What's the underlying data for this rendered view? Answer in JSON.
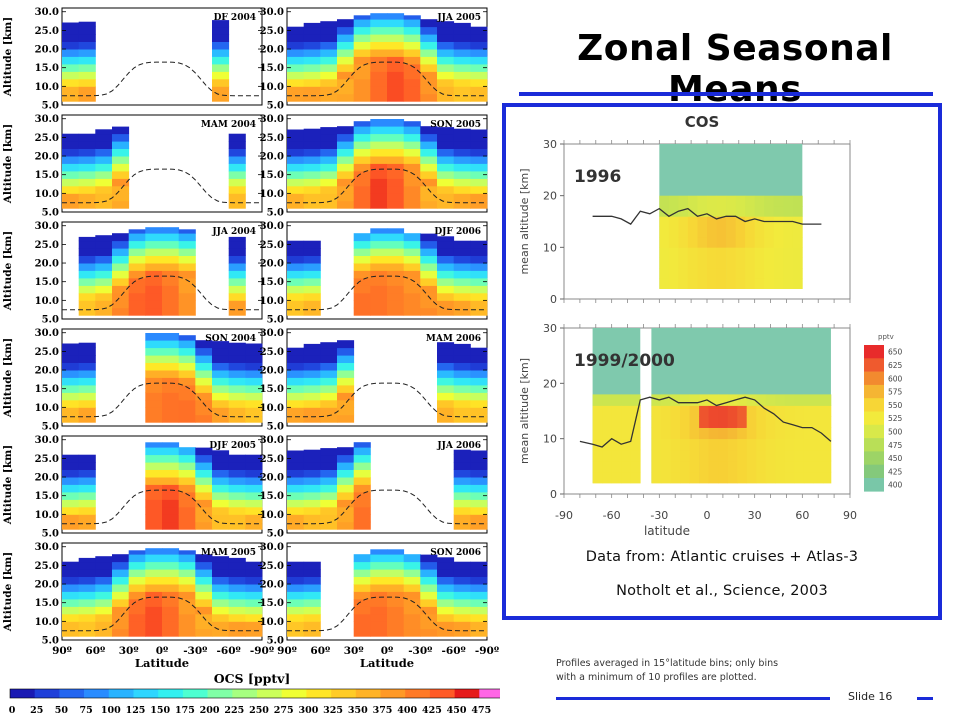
{
  "slide": {
    "title": "Zonal Seasonal Means",
    "caption_line1": "Data from: Atlantic cruises + Atlas-3",
    "caption_line2": "Notholt et al., Science, 2003",
    "note_line1": "Profiles averaged in 15°latitude bins; only bins",
    "note_line2": "with a minimum of 10 profiles are plotted.",
    "slide_number": "Slide 16"
  },
  "colors": {
    "accent": "#1a2bd9"
  },
  "chart_data": [
    {
      "type": "heatmap",
      "layout": "grid of 12 small multiples, 6 rows x 2 columns",
      "panels": [
        {
          "label": "DF 2004"
        },
        {
          "label": "JJA 2005"
        },
        {
          "label": "MAM 2004"
        },
        {
          "label": "SON 2005"
        },
        {
          "label": "JJA 2004"
        },
        {
          "label": "DJF 2006"
        },
        {
          "label": "SON 2004"
        },
        {
          "label": "MAM 2006"
        },
        {
          "label": "DJF 2005"
        },
        {
          "label": "JJA 2006"
        },
        {
          "label": "MAM 2005"
        },
        {
          "label": "SON 2006"
        }
      ],
      "xlabel": "Latitude",
      "ylabel": "Altitude [km]",
      "x_tick_labels": [
        "90º",
        "60º",
        "30º",
        "0º",
        "-30º",
        "-60º",
        "-90º"
      ],
      "xlim": [
        90,
        -90
      ],
      "y_tick_labels": [
        "30.0",
        "25.0",
        "20.0",
        "15.0",
        "10.0",
        "5.0"
      ],
      "ylim": [
        5,
        31
      ],
      "colorbar": {
        "title": "OCS [pptv]",
        "tick_labels": [
          "0",
          "25",
          "50",
          "75",
          "100",
          "125",
          "150",
          "175",
          "200",
          "225",
          "250",
          "275",
          "300",
          "325",
          "350",
          "375",
          "400",
          "425",
          "450",
          "475"
        ],
        "colors": [
          "#1a1ab3",
          "#1f3fd9",
          "#2466f0",
          "#2a8cff",
          "#29b3ff",
          "#2ed6ff",
          "#33f0f0",
          "#4dffd1",
          "#80ffa6",
          "#a6ff80",
          "#ccff59",
          "#f0ff33",
          "#ffe626",
          "#ffcc26",
          "#ffb326",
          "#ff9926",
          "#ff7a26",
          "#ff5a26",
          "#e61a1a",
          "#ff66e6"
        ]
      },
      "legend": "none",
      "grid": false
    },
    {
      "type": "heatmap",
      "figure_title": "COS",
      "panels": [
        {
          "label": "1996"
        },
        {
          "label": "1999/2000"
        }
      ],
      "xlabel": "latitude",
      "ylabel": "mean altitude [km]",
      "x_tick_labels": [
        "-90",
        "-60",
        "-30",
        "0",
        "30",
        "60",
        "90"
      ],
      "xlim": [
        -90,
        90
      ],
      "y_tick_labels": [
        "0",
        "10",
        "20",
        "30"
      ],
      "ylim": [
        0,
        30
      ],
      "colorbar": {
        "unit": "pptv",
        "tick_labels": [
          "650",
          "625",
          "600",
          "575",
          "550",
          "525",
          "500",
          "475",
          "450",
          "425",
          "400"
        ],
        "colors": [
          "#e82b2b",
          "#ef5a2e",
          "#f28a2f",
          "#f5b533",
          "#f7d636",
          "#f2ea3c",
          "#d8e94a",
          "#b9df57",
          "#9dd466",
          "#84c97b",
          "#79c7a8"
        ]
      },
      "series": [
        {
          "name": "1996",
          "x": [
            -72,
            -66,
            -60,
            -54,
            -48,
            -42,
            -36,
            -30,
            -24,
            -18,
            -12,
            -6,
            0,
            6,
            12,
            18,
            24,
            30,
            36,
            42,
            48,
            54,
            60,
            66,
            72
          ],
          "y": [
            16,
            16,
            16,
            15.5,
            14.5,
            17,
            16.5,
            17.5,
            16,
            17,
            17.5,
            16,
            16.5,
            15.5,
            16,
            16,
            15,
            15.5,
            15,
            15,
            15,
            15,
            14.5,
            14.5,
            14.5
          ]
        },
        {
          "name": "1999/2000",
          "x": [
            -80,
            -72,
            -66,
            -60,
            -54,
            -48,
            -42,
            -36,
            -30,
            -24,
            -18,
            -12,
            -6,
            0,
            6,
            12,
            18,
            24,
            30,
            36,
            42,
            48,
            54,
            60,
            66,
            72,
            78
          ],
          "y": [
            9.5,
            9,
            8.5,
            10,
            9,
            9.5,
            17,
            17.5,
            17,
            17.5,
            16.5,
            16.5,
            16.5,
            17,
            16,
            16.5,
            17,
            17.5,
            17,
            15.5,
            14.5,
            13,
            12.5,
            12,
            12,
            11,
            9.5
          ]
        }
      ],
      "grid": false
    }
  ]
}
